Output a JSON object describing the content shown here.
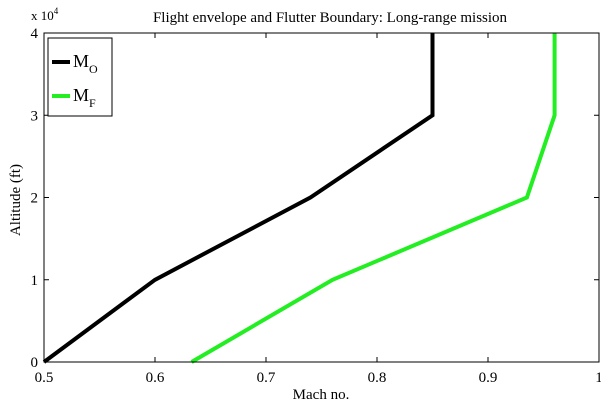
{
  "chart_data": {
    "type": "line",
    "title": "Flight envelope and Flutter Boundary: Long-range mission",
    "xlabel": "Mach no.",
    "ylabel": "Altitude (ft)",
    "y_scale_label": "x 10",
    "y_scale_exponent": "4",
    "xlim": [
      0.5,
      1.0
    ],
    "ylim": [
      0,
      40000
    ],
    "x_ticks": [
      0.5,
      0.6,
      0.7,
      0.8,
      0.9,
      1.0
    ],
    "x_tick_labels": [
      "0.5",
      "0.6",
      "0.7",
      "0.8",
      "0.9",
      "1"
    ],
    "y_ticks": [
      0,
      10000,
      20000,
      30000,
      40000
    ],
    "y_tick_labels": [
      "0",
      "1",
      "2",
      "3",
      "4"
    ],
    "grid": false,
    "legend_position": "top-left",
    "series": [
      {
        "name": "M",
        "name_sub": "O",
        "color": "#000000",
        "points": [
          [
            0.5,
            0
          ],
          [
            0.6,
            10000
          ],
          [
            0.74,
            20000
          ],
          [
            0.85,
            30000
          ],
          [
            0.85,
            40000
          ]
        ]
      },
      {
        "name": "M",
        "name_sub": "F",
        "color": "#22ee22",
        "points": [
          [
            0.633,
            0
          ],
          [
            0.76,
            10000
          ],
          [
            0.935,
            20000
          ],
          [
            0.96,
            30000
          ],
          [
            0.96,
            40000
          ]
        ]
      }
    ]
  }
}
